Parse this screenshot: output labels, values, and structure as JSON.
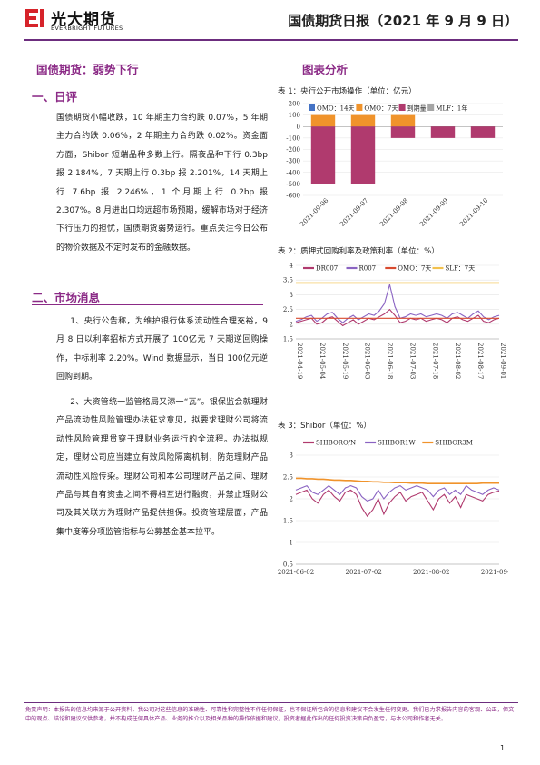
{
  "header": {
    "brand_cn": "光大期货",
    "brand_en": "EVERBRIGHT FUTURES",
    "report_title": "国债期货日报（2021 年 9 月 9 日）"
  },
  "left": {
    "main_title": "国债期货：弱势下行",
    "sec1_title": "一、日评",
    "sec1_text": "国债期货小幅收跌，10 年期主力合约跌 0.07%，5 年期主力合约跌 0.06%，2 年期主力合约跌 0.02%。资金面方面，Shibor 短端品种多数上行。隔夜品种下行 0.3bp 报 2.184%，7 天期上行 0.3bp 报 2.201%，14 天期上行 7.6bp 报 2.246%，1 个月期上行 0.2bp 报 2.307%。8 月进出口均远超市场预期，缓解市场对于经济下行压力的担忧，国债期货弱势运行。重点关注今日公布的物价数据及不定时发布的金融数据。",
    "sec2_title": "二、市场消息",
    "news1": "1、央行公告称，为维护银行体系流动性合理充裕，9 月 8 日以利率招标方式开展了 100亿元 7 天期逆回购操作，中标利率 2.20%。Wind 数据显示，当日 100亿元逆回购到期。",
    "news2": "2、大资管统一监管格局又添一“瓦”。银保监会就理财产品流动性风险管理办法征求意见，拟要求理财公司将流动性风险管理贯穿于理财业务运行的全流程。办法拟规定，理财公司应当建立有效风险隔离机制，防范理财产品流动性风险传染。理财公司和本公司理财产品之间、理财产品与其自有资金之间不得相互进行融资，并禁止理财公司及其关联方为理财产品提供担保。投资管理层面，产品集中度等分项监管指标与公募基金基本拉平。"
  },
  "right": {
    "section_title": "图表分析",
    "chart1_title": "表 1：央行公开市场操作（单位：亿元）",
    "chart2_title": "表 2：质押式回购利率及政策利率（单位：%）",
    "chart3_title": "表 3：Shibor（单位：%）"
  },
  "chart_data": [
    {
      "type": "bar",
      "title": "表 1：央行公开市场操作（单位：亿元）",
      "categories": [
        "2021-09-06",
        "2021-09-07",
        "2021-09-08",
        "2021-09-09",
        "2021-09-10"
      ],
      "series": [
        {
          "name": "OMO：14天",
          "values": [
            0,
            0,
            0,
            0,
            0
          ]
        },
        {
          "name": "OMO：7天",
          "values": [
            100,
            100,
            100,
            0,
            0
          ]
        },
        {
          "name": "到期量",
          "values": [
            -500,
            -500,
            -100,
            -100,
            -100
          ]
        },
        {
          "name": "MLF：1年",
          "values": [
            0,
            0,
            0,
            0,
            0
          ]
        }
      ],
      "yticks": [
        "200",
        "100",
        "0",
        "-100",
        "-200",
        "-300",
        "-400",
        "-500",
        "-600"
      ],
      "ylim": [
        -600,
        200
      ],
      "colors": {
        "omo14": "#4472c4",
        "omo7": "#f0932b",
        "maturity": "#b03a6e",
        "mlf": "#a5a5a5"
      },
      "grid": true,
      "legend": "top"
    },
    {
      "type": "line",
      "title": "表 2：质押式回购利率及政策利率（单位：%）",
      "x_labels": [
        "2021-04-19",
        "2021-05-04",
        "2021-05-19",
        "2021-06-03",
        "2021-06-18",
        "2021-07-03",
        "2021-07-18",
        "2021-08-02",
        "2021-08-17",
        "2021-09-01"
      ],
      "yticks": [
        "4",
        "3.5",
        "3",
        "2.5",
        "2",
        "1.5"
      ],
      "ylim": [
        1.5,
        4
      ],
      "series": [
        {
          "name": "DR007",
          "color": "#b03a6e",
          "values": [
            2.05,
            2.1,
            2.15,
            2.2,
            2.0,
            2.05,
            2.2,
            2.25,
            2.1,
            1.95,
            2.05,
            2.15,
            2.0,
            2.1,
            2.2,
            2.15,
            2.25,
            2.35,
            2.5,
            2.3,
            2.05,
            2.1,
            2.2,
            2.15,
            2.2,
            2.1,
            2.15,
            2.2,
            2.15,
            2.05,
            2.2,
            2.25,
            2.15,
            2.1,
            2.2,
            2.3,
            2.1,
            2.05,
            2.15,
            2.2
          ]
        },
        {
          "name": "R007",
          "color": "#8a63c2",
          "values": [
            2.1,
            2.15,
            2.25,
            2.3,
            2.1,
            2.2,
            2.35,
            2.4,
            2.2,
            2.05,
            2.2,
            2.3,
            2.15,
            2.25,
            2.35,
            2.3,
            2.45,
            2.7,
            3.35,
            2.6,
            2.2,
            2.25,
            2.35,
            2.3,
            2.35,
            2.25,
            2.3,
            2.35,
            2.3,
            2.2,
            2.35,
            2.4,
            2.3,
            2.2,
            2.35,
            2.45,
            2.25,
            2.15,
            2.25,
            2.3
          ]
        },
        {
          "name": "OMO：7天",
          "color": "#d84a2e",
          "values": [
            2.2,
            2.2,
            2.2,
            2.2,
            2.2,
            2.2,
            2.2,
            2.2,
            2.2,
            2.2,
            2.2,
            2.2,
            2.2,
            2.2,
            2.2,
            2.2,
            2.2,
            2.2,
            2.2,
            2.2,
            2.2,
            2.2,
            2.2,
            2.2,
            2.2,
            2.2,
            2.2,
            2.2,
            2.2,
            2.2,
            2.2,
            2.2,
            2.2,
            2.2,
            2.2,
            2.2,
            2.2,
            2.2,
            2.2,
            2.2
          ]
        },
        {
          "name": "SLF：7天",
          "color": "#f2c14e",
          "values": [
            3.4,
            3.4,
            3.4,
            3.4,
            3.4,
            3.4,
            3.4,
            3.4,
            3.4,
            3.4,
            3.4,
            3.4,
            3.4,
            3.4,
            3.4,
            3.4,
            3.4,
            3.4,
            3.4,
            3.4,
            3.4,
            3.4,
            3.4,
            3.4,
            3.4,
            3.4,
            3.4,
            3.4,
            3.4,
            3.4,
            3.4,
            3.4,
            3.4,
            3.4,
            3.4,
            3.4,
            3.4,
            3.4,
            3.4,
            3.4
          ]
        }
      ],
      "grid": true,
      "legend": "top"
    },
    {
      "type": "line",
      "title": "表 3：Shibor（单位：%）",
      "x_labels": [
        "2021-06-02",
        "2021-07-02",
        "2021-08-02",
        "2021-09-02"
      ],
      "yticks": [
        "3",
        "2.5",
        "2",
        "1.5",
        "1",
        "0.5"
      ],
      "ylim": [
        0.5,
        3
      ],
      "series": [
        {
          "name": "SHIBORO/N",
          "color": "#b03a6e",
          "values": [
            2.1,
            2.15,
            2.2,
            2.0,
            1.9,
            2.1,
            2.2,
            2.05,
            1.95,
            2.15,
            2.2,
            2.1,
            1.8,
            1.6,
            1.75,
            2.0,
            1.65,
            1.9,
            2.05,
            2.15,
            1.95,
            2.05,
            2.1,
            2.15,
            1.95,
            1.75,
            2.0,
            2.1,
            1.9,
            2.05,
            1.8,
            2.1,
            2.05,
            2.0,
            1.95,
            2.1,
            2.15,
            2.18
          ]
        },
        {
          "name": "SHIBOR1W",
          "color": "#8a63c2",
          "values": [
            2.2,
            2.25,
            2.3,
            2.15,
            2.1,
            2.2,
            2.3,
            2.2,
            2.1,
            2.25,
            2.3,
            2.25,
            2.05,
            1.95,
            2.0,
            2.2,
            2.0,
            2.15,
            2.25,
            2.3,
            2.2,
            2.25,
            2.3,
            2.25,
            2.2,
            2.05,
            2.2,
            2.25,
            2.1,
            2.2,
            2.1,
            2.3,
            2.2,
            2.15,
            2.1,
            2.2,
            2.25,
            2.2
          ]
        },
        {
          "name": "SHIBOR3M",
          "color": "#f0932b",
          "values": [
            2.47,
            2.47,
            2.46,
            2.46,
            2.45,
            2.45,
            2.44,
            2.43,
            2.43,
            2.42,
            2.42,
            2.41,
            2.4,
            2.4,
            2.39,
            2.39,
            2.38,
            2.38,
            2.37,
            2.37,
            2.37,
            2.36,
            2.36,
            2.36,
            2.35,
            2.35,
            2.35,
            2.35,
            2.35,
            2.35,
            2.35,
            2.35,
            2.35,
            2.35,
            2.36,
            2.36,
            2.36,
            2.36
          ]
        }
      ],
      "grid": true,
      "legend": "top"
    }
  ],
  "footer": {
    "disclaimer": "免责声明：本报告的信息均来源于公开资料，我公司对这些信息的准确性、可靠性和完整性不作任何保证，也不保证所包含的信息和建议不会发生任何变更。我们已力求报告内容的客观、公正，但文中的观点、结论和建议仅供参考，并不构成任何具体产品、业务的推介以及相关品种的操作依据和建议，投资者据此作出的任何投资决策自负盈亏，与本公司和作者无关。",
    "page_no": "1"
  }
}
